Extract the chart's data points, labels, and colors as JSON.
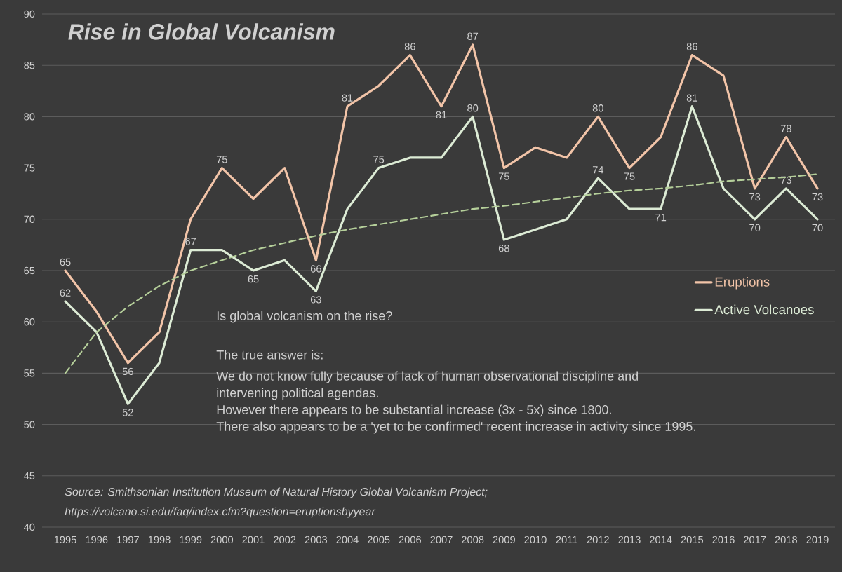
{
  "chart_data": {
    "type": "line",
    "title": "Rise in Global Volcanism",
    "categories": [
      "1995",
      "1996",
      "1997",
      "1998",
      "1999",
      "2000",
      "2001",
      "2002",
      "2003",
      "2004",
      "2005",
      "2006",
      "2007",
      "2008",
      "2009",
      "2010",
      "2011",
      "2012",
      "2013",
      "2014",
      "2015",
      "2016",
      "2017",
      "2018",
      "2019"
    ],
    "series": [
      {
        "name": "Eruptions",
        "color": "#f2c4a8",
        "values": [
          65,
          61,
          56,
          59,
          70,
          75,
          72,
          75,
          66,
          81,
          83,
          86,
          81,
          87,
          75,
          77,
          76,
          80,
          75,
          78,
          86,
          84,
          73,
          78,
          73
        ],
        "value_labels": [
          "65",
          null,
          "56",
          null,
          null,
          "75",
          null,
          null,
          "66",
          "81",
          null,
          "86",
          "81",
          "87",
          "75",
          null,
          null,
          "80",
          "75",
          null,
          "86",
          null,
          "73",
          "78",
          "73"
        ]
      },
      {
        "name": "Active Volcanoes",
        "color": "#dcebd5",
        "values": [
          62,
          59,
          52,
          56,
          67,
          67,
          65,
          66,
          63,
          71,
          75,
          76,
          76,
          80,
          68,
          69,
          70,
          74,
          71,
          71,
          81,
          73,
          70,
          73,
          70
        ],
        "value_labels": [
          "62",
          null,
          "52",
          null,
          "67",
          null,
          "65",
          null,
          "63",
          null,
          "75",
          null,
          null,
          "80",
          "68",
          null,
          null,
          "74",
          null,
          "71",
          "81",
          null,
          "70",
          "73",
          "70"
        ]
      },
      {
        "type": "line",
        "line_style": "dashed",
        "color": "#b5cf9a",
        "values": [
          55,
          59,
          61.5,
          63.5,
          65,
          66,
          67,
          67.7,
          68.4,
          69,
          69.5,
          70,
          70.5,
          71,
          71.3,
          71.7,
          72.1,
          72.5,
          72.8,
          73,
          73.3,
          73.7,
          73.9,
          74.1,
          74.4
        ]
      }
    ],
    "ylim": [
      40,
      90
    ],
    "yticks": [
      40,
      45,
      50,
      55,
      60,
      65,
      70,
      75,
      80,
      85,
      90
    ],
    "grid": "y",
    "legend": "right",
    "marker": "none",
    "annotations": [
      "Is global volcanism  on the rise?",
      "The true answer is:",
      "We do not know fully because of lack of human observational discipline and",
      "intervening political agendas.",
      "However there appears to be substantial increase (3x - 5x) since 1800.",
      "There also appears to be a 'yet to be confirmed' recent increase in activity since 1995.",
      "Source:  Smithsonian Institution  Museum of Natural History  Global Volcanism Project;",
      "https://volcano.si.edu/faq/index.cfm?question=eruptionsbyyear"
    ]
  }
}
